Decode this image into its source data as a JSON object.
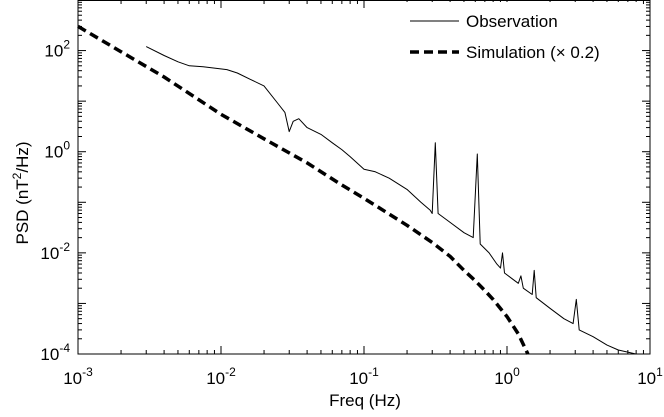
{
  "chart_data": {
    "type": "line",
    "title": "",
    "xlabel": "Freq (Hz)",
    "ylabel_parts": [
      "PSD (nT",
      "2",
      "/Hz)"
    ],
    "x_scale": "log",
    "y_scale": "log",
    "xlim": [
      0.001,
      10
    ],
    "ylim": [
      0.0001,
      1000
    ],
    "x_ticks": [
      {
        "value": 0.001,
        "base": "10",
        "exp": "-3"
      },
      {
        "value": 0.01,
        "base": "10",
        "exp": "-2"
      },
      {
        "value": 0.1,
        "base": "10",
        "exp": "-1"
      },
      {
        "value": 1,
        "base": "10",
        "exp": "0"
      },
      {
        "value": 10,
        "base": "10",
        "exp": "1"
      }
    ],
    "y_ticks": [
      {
        "value": 0.0001,
        "base": "10",
        "exp": "-4"
      },
      {
        "value": 0.01,
        "base": "10",
        "exp": "-2"
      },
      {
        "value": 1,
        "base": "10",
        "exp": "0"
      },
      {
        "value": 100,
        "base": "10",
        "exp": "2"
      }
    ],
    "grid": false,
    "legend_position": "top-right",
    "series": [
      {
        "name": "Observation",
        "style": "solid",
        "color": "#000000",
        "points": [
          [
            0.003,
            120
          ],
          [
            0.004,
            80
          ],
          [
            0.005,
            60
          ],
          [
            0.006,
            50
          ],
          [
            0.0075,
            48
          ],
          [
            0.009,
            45
          ],
          [
            0.011,
            42
          ],
          [
            0.013,
            36
          ],
          [
            0.016,
            27
          ],
          [
            0.02,
            20
          ],
          [
            0.025,
            9
          ],
          [
            0.028,
            6
          ],
          [
            0.03,
            2.5
          ],
          [
            0.032,
            4
          ],
          [
            0.035,
            4.5
          ],
          [
            0.04,
            3
          ],
          [
            0.05,
            2.2
          ],
          [
            0.06,
            1.5
          ],
          [
            0.07,
            1.1
          ],
          [
            0.08,
            0.8
          ],
          [
            0.1,
            0.45
          ],
          [
            0.12,
            0.4
          ],
          [
            0.15,
            0.3
          ],
          [
            0.2,
            0.18
          ],
          [
            0.25,
            0.1
          ],
          [
            0.29,
            0.07
          ],
          [
            0.3,
            0.06
          ],
          [
            0.315,
            1.5
          ],
          [
            0.33,
            0.06
          ],
          [
            0.4,
            0.04
          ],
          [
            0.5,
            0.025
          ],
          [
            0.58,
            0.02
          ],
          [
            0.62,
            0.9
          ],
          [
            0.65,
            0.015
          ],
          [
            0.75,
            0.01
          ],
          [
            0.85,
            0.006
          ],
          [
            0.9,
            0.005
          ],
          [
            0.93,
            0.01
          ],
          [
            0.96,
            0.004
          ],
          [
            1.1,
            0.003
          ],
          [
            1.2,
            0.0025
          ],
          [
            1.25,
            0.0035
          ],
          [
            1.3,
            0.002
          ],
          [
            1.5,
            0.0015
          ],
          [
            1.55,
            0.0045
          ],
          [
            1.6,
            0.0013
          ],
          [
            2,
            0.0008
          ],
          [
            2.5,
            0.0005
          ],
          [
            2.9,
            0.0004
          ],
          [
            3.05,
            0.0012
          ],
          [
            3.2,
            0.0003
          ],
          [
            4,
            0.00022
          ],
          [
            5,
            0.00015
          ],
          [
            6,
            0.00012
          ],
          [
            8,
            0.0001
          ]
        ]
      },
      {
        "name": "Simulation (× 0.2)",
        "style": "dashed",
        "color": "#000000",
        "points": [
          [
            0.001,
            300
          ],
          [
            0.002,
            95
          ],
          [
            0.004,
            30
          ],
          [
            0.01,
            5.5
          ],
          [
            0.02,
            1.8
          ],
          [
            0.04,
            0.6
          ],
          [
            0.07,
            0.22
          ],
          [
            0.1,
            0.12
          ],
          [
            0.2,
            0.035
          ],
          [
            0.3,
            0.016
          ],
          [
            0.4,
            0.0085
          ],
          [
            0.5,
            0.0045
          ],
          [
            0.6,
            0.0028
          ],
          [
            0.7,
            0.0018
          ],
          [
            0.8,
            0.0012
          ],
          [
            1.0,
            0.00055
          ],
          [
            1.2,
            0.00025
          ],
          [
            1.4,
            0.0001
          ]
        ]
      }
    ]
  }
}
